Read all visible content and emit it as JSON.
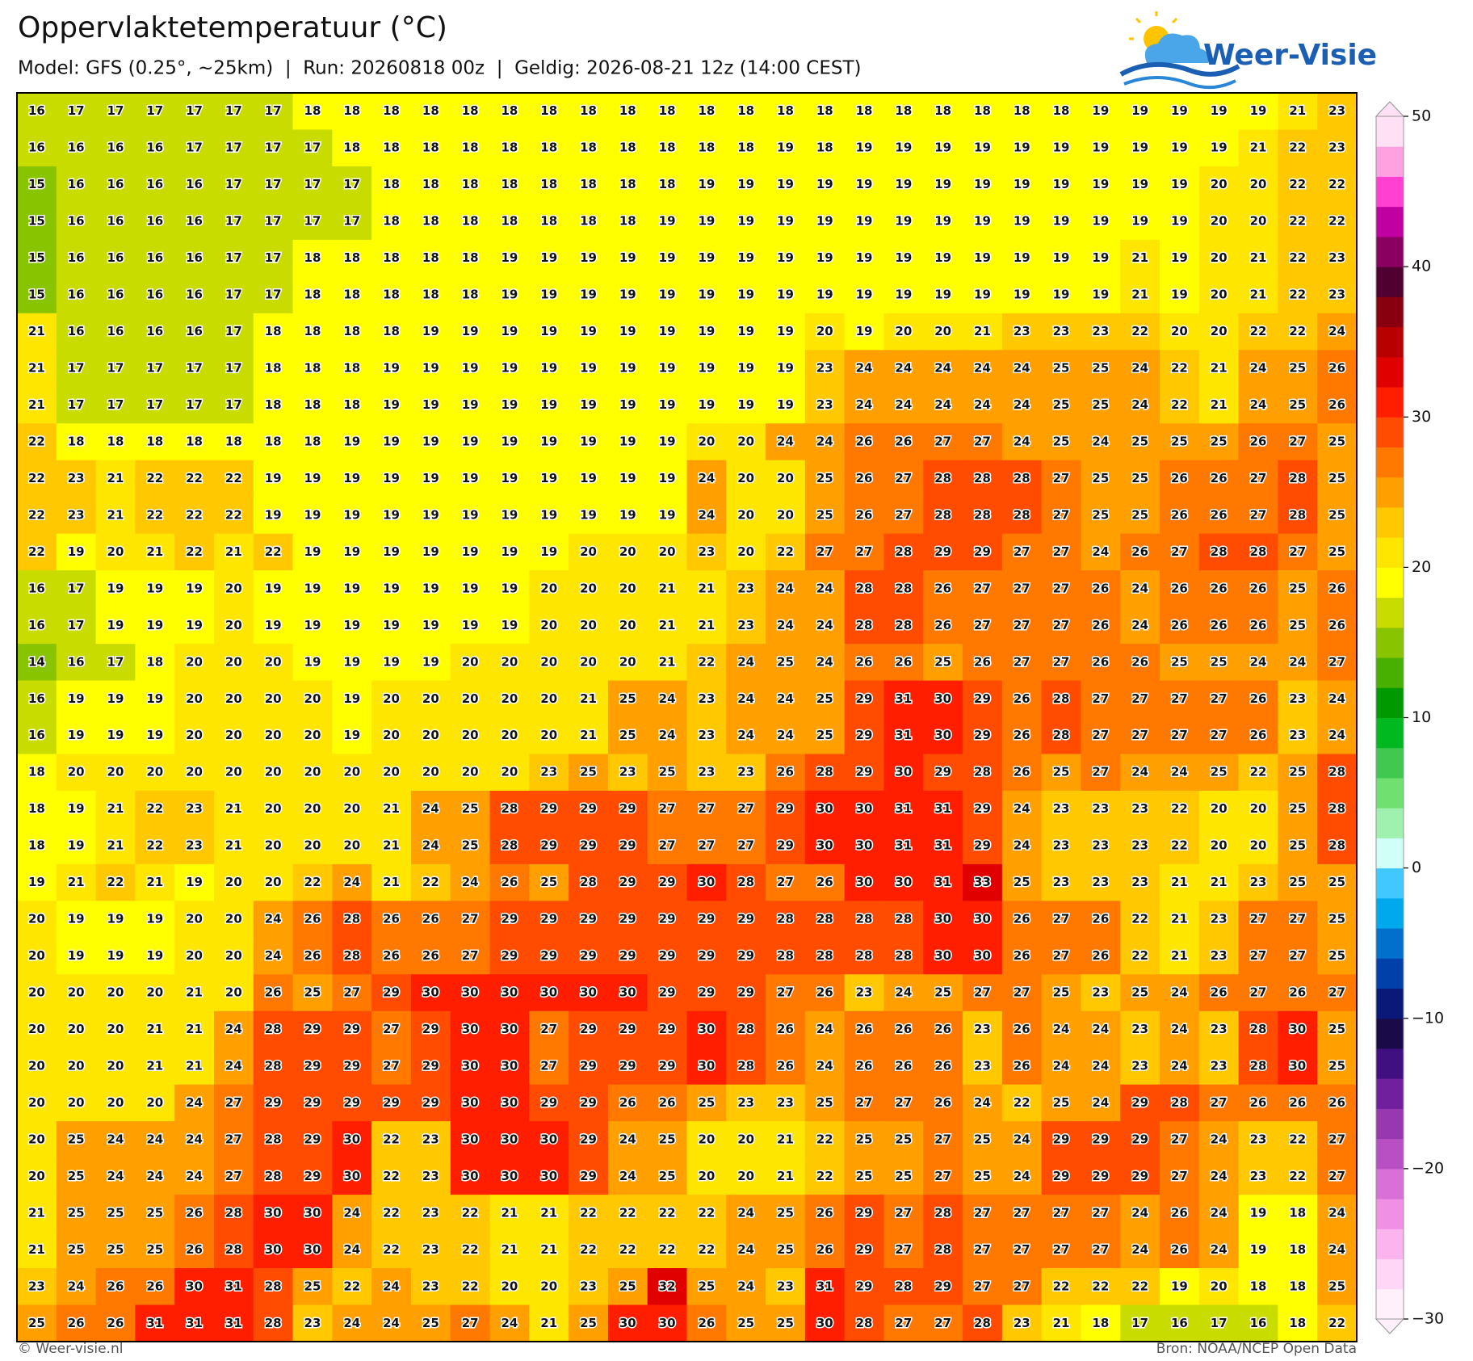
{
  "title": "Oppervlaktetemperatuur (°C)",
  "subtitle": "Model: GFS (0.25°, ~25km)  |  Run: 20260818 00z  |  Geldig: 2026-08-21 12z (14:00 CEST)",
  "logo_text": "Weer-Visie",
  "footer_left": "© Weer-visie.nl",
  "footer_right": "Bron: NOAA/NCEP Open Data",
  "map": {
    "values": [
      [
        16,
        17,
        17,
        17,
        17,
        17,
        17,
        18,
        18,
        18,
        18,
        18,
        18,
        18,
        18,
        18,
        18,
        18,
        18,
        18,
        18,
        18,
        18,
        18,
        18,
        18,
        18,
        19,
        19,
        19,
        19,
        19,
        21,
        23
      ],
      [
        16,
        16,
        16,
        16,
        17,
        17,
        17,
        17,
        18,
        18,
        18,
        18,
        18,
        18,
        18,
        18,
        18,
        18,
        18,
        19,
        18,
        19,
        19,
        19,
        19,
        19,
        19,
        19,
        19,
        19,
        19,
        21,
        22,
        23
      ],
      [
        15,
        16,
        16,
        16,
        16,
        17,
        17,
        17,
        17,
        18,
        18,
        18,
        18,
        18,
        18,
        18,
        18,
        19,
        19,
        19,
        19,
        19,
        19,
        19,
        19,
        19,
        19,
        19,
        19,
        19,
        20,
        20,
        22,
        22
      ],
      [
        15,
        16,
        16,
        16,
        16,
        17,
        17,
        17,
        17,
        18,
        18,
        18,
        18,
        18,
        18,
        18,
        19,
        19,
        19,
        19,
        19,
        19,
        19,
        19,
        19,
        19,
        19,
        19,
        19,
        19,
        20,
        20,
        22,
        22
      ],
      [
        15,
        16,
        16,
        16,
        16,
        17,
        17,
        18,
        18,
        18,
        18,
        18,
        19,
        19,
        19,
        19,
        19,
        19,
        19,
        19,
        19,
        19,
        19,
        19,
        19,
        19,
        19,
        19,
        21,
        19,
        20,
        21,
        22,
        23
      ],
      [
        15,
        16,
        16,
        16,
        16,
        17,
        17,
        18,
        18,
        18,
        18,
        18,
        19,
        19,
        19,
        19,
        19,
        19,
        19,
        19,
        19,
        19,
        19,
        19,
        19,
        19,
        19,
        19,
        21,
        19,
        20,
        21,
        22,
        23
      ],
      [
        21,
        16,
        16,
        16,
        16,
        17,
        18,
        18,
        18,
        18,
        19,
        19,
        19,
        19,
        19,
        19,
        19,
        19,
        19,
        19,
        20,
        19,
        20,
        20,
        21,
        23,
        23,
        23,
        22,
        20,
        20,
        22,
        22,
        24
      ],
      [
        21,
        17,
        17,
        17,
        17,
        17,
        18,
        18,
        18,
        19,
        19,
        19,
        19,
        19,
        19,
        19,
        19,
        19,
        19,
        19,
        23,
        24,
        24,
        24,
        24,
        24,
        25,
        25,
        24,
        22,
        21,
        24,
        25,
        26
      ],
      [
        21,
        17,
        17,
        17,
        17,
        17,
        18,
        18,
        18,
        19,
        19,
        19,
        19,
        19,
        19,
        19,
        19,
        19,
        19,
        19,
        23,
        24,
        24,
        24,
        24,
        24,
        25,
        25,
        24,
        22,
        21,
        24,
        25,
        26
      ],
      [
        22,
        18,
        18,
        18,
        18,
        18,
        18,
        18,
        19,
        19,
        19,
        19,
        19,
        19,
        19,
        19,
        19,
        20,
        20,
        24,
        24,
        26,
        26,
        27,
        27,
        24,
        25,
        24,
        25,
        25,
        25,
        26,
        27,
        25
      ],
      [
        22,
        23,
        21,
        22,
        22,
        22,
        19,
        19,
        19,
        19,
        19,
        19,
        19,
        19,
        19,
        19,
        19,
        24,
        20,
        20,
        25,
        26,
        27,
        28,
        28,
        28,
        27,
        25,
        25,
        26,
        26,
        27,
        28,
        25
      ],
      [
        22,
        23,
        21,
        22,
        22,
        22,
        19,
        19,
        19,
        19,
        19,
        19,
        19,
        19,
        19,
        19,
        19,
        24,
        20,
        20,
        25,
        26,
        27,
        28,
        28,
        28,
        27,
        25,
        25,
        26,
        26,
        27,
        28,
        25
      ],
      [
        22,
        19,
        20,
        21,
        22,
        21,
        22,
        19,
        19,
        19,
        19,
        19,
        19,
        19,
        20,
        20,
        20,
        23,
        20,
        22,
        27,
        27,
        28,
        29,
        29,
        27,
        27,
        24,
        26,
        27,
        28,
        28,
        27,
        25
      ],
      [
        16,
        17,
        19,
        19,
        19,
        20,
        19,
        19,
        19,
        19,
        19,
        19,
        19,
        20,
        20,
        20,
        21,
        21,
        23,
        24,
        24,
        28,
        28,
        26,
        27,
        27,
        27,
        26,
        24,
        26,
        26,
        26,
        25,
        26
      ],
      [
        16,
        17,
        19,
        19,
        19,
        20,
        19,
        19,
        19,
        19,
        19,
        19,
        19,
        20,
        20,
        20,
        21,
        21,
        23,
        24,
        24,
        28,
        28,
        26,
        27,
        27,
        27,
        26,
        24,
        26,
        26,
        26,
        25,
        26
      ],
      [
        14,
        16,
        17,
        18,
        20,
        20,
        20,
        19,
        19,
        19,
        19,
        20,
        20,
        20,
        20,
        20,
        21,
        22,
        24,
        25,
        24,
        26,
        26,
        25,
        26,
        27,
        27,
        26,
        26,
        25,
        25,
        24,
        24,
        27
      ],
      [
        16,
        19,
        19,
        19,
        20,
        20,
        20,
        20,
        19,
        20,
        20,
        20,
        20,
        20,
        21,
        25,
        24,
        23,
        24,
        24,
        25,
        29,
        31,
        30,
        29,
        26,
        28,
        27,
        27,
        27,
        27,
        26,
        23,
        24
      ],
      [
        16,
        19,
        19,
        19,
        20,
        20,
        20,
        20,
        19,
        20,
        20,
        20,
        20,
        20,
        21,
        25,
        24,
        23,
        24,
        24,
        25,
        29,
        31,
        30,
        29,
        26,
        28,
        27,
        27,
        27,
        27,
        26,
        23,
        24
      ],
      [
        18,
        20,
        20,
        20,
        20,
        20,
        20,
        20,
        20,
        20,
        20,
        20,
        20,
        23,
        25,
        23,
        25,
        23,
        23,
        26,
        28,
        29,
        30,
        29,
        28,
        26,
        25,
        27,
        24,
        24,
        25,
        22,
        25,
        28
      ],
      [
        18,
        19,
        21,
        22,
        23,
        21,
        20,
        20,
        20,
        21,
        24,
        25,
        28,
        29,
        29,
        29,
        27,
        27,
        27,
        29,
        30,
        30,
        31,
        31,
        29,
        24,
        23,
        23,
        23,
        22,
        20,
        20,
        25,
        28
      ],
      [
        18,
        19,
        21,
        22,
        23,
        21,
        20,
        20,
        20,
        21,
        24,
        25,
        28,
        29,
        29,
        29,
        27,
        27,
        27,
        29,
        30,
        30,
        31,
        31,
        29,
        24,
        23,
        23,
        23,
        22,
        20,
        20,
        25,
        28
      ],
      [
        19,
        21,
        22,
        21,
        19,
        20,
        20,
        22,
        24,
        21,
        22,
        24,
        26,
        25,
        28,
        29,
        29,
        30,
        28,
        27,
        26,
        30,
        30,
        31,
        33,
        25,
        23,
        23,
        23,
        21,
        21,
        23,
        25,
        25
      ],
      [
        20,
        19,
        19,
        19,
        20,
        20,
        24,
        26,
        28,
        26,
        26,
        27,
        29,
        29,
        29,
        29,
        29,
        29,
        29,
        28,
        28,
        28,
        28,
        30,
        30,
        26,
        27,
        26,
        22,
        21,
        23,
        27,
        27,
        25
      ],
      [
        20,
        19,
        19,
        19,
        20,
        20,
        24,
        26,
        28,
        26,
        26,
        27,
        29,
        29,
        29,
        29,
        29,
        29,
        29,
        28,
        28,
        28,
        28,
        30,
        30,
        26,
        27,
        26,
        22,
        21,
        23,
        27,
        27,
        25
      ],
      [
        20,
        20,
        20,
        20,
        21,
        20,
        26,
        25,
        27,
        29,
        30,
        30,
        30,
        30,
        30,
        30,
        29,
        29,
        29,
        27,
        26,
        23,
        24,
        25,
        27,
        27,
        25,
        23,
        25,
        24,
        26,
        27,
        26,
        27
      ],
      [
        20,
        20,
        20,
        21,
        21,
        24,
        28,
        29,
        29,
        27,
        29,
        30,
        30,
        27,
        29,
        29,
        29,
        30,
        28,
        26,
        24,
        26,
        26,
        26,
        23,
        26,
        24,
        24,
        23,
        24,
        23,
        28,
        30,
        25
      ],
      [
        20,
        20,
        20,
        21,
        21,
        24,
        28,
        29,
        29,
        27,
        29,
        30,
        30,
        27,
        29,
        29,
        29,
        30,
        28,
        26,
        24,
        26,
        26,
        26,
        23,
        26,
        24,
        24,
        23,
        24,
        23,
        28,
        30,
        25
      ],
      [
        20,
        20,
        20,
        20,
        24,
        27,
        29,
        29,
        29,
        29,
        29,
        30,
        30,
        29,
        29,
        26,
        26,
        25,
        23,
        23,
        25,
        27,
        27,
        26,
        24,
        22,
        25,
        24,
        29,
        28,
        27,
        26,
        26,
        26
      ],
      [
        20,
        25,
        24,
        24,
        24,
        27,
        28,
        29,
        30,
        22,
        23,
        30,
        30,
        30,
        29,
        24,
        25,
        20,
        20,
        21,
        22,
        25,
        25,
        27,
        25,
        24,
        29,
        29,
        29,
        27,
        24,
        23,
        22,
        27
      ],
      [
        20,
        25,
        24,
        24,
        24,
        27,
        28,
        29,
        30,
        22,
        23,
        30,
        30,
        30,
        29,
        24,
        25,
        20,
        20,
        21,
        22,
        25,
        25,
        27,
        25,
        24,
        29,
        29,
        29,
        27,
        24,
        23,
        22,
        27
      ],
      [
        21,
        25,
        25,
        25,
        26,
        28,
        30,
        30,
        24,
        22,
        23,
        22,
        21,
        21,
        22,
        22,
        22,
        22,
        24,
        25,
        26,
        29,
        27,
        28,
        27,
        27,
        27,
        27,
        24,
        26,
        24,
        19,
        18,
        24
      ],
      [
        21,
        25,
        25,
        25,
        26,
        28,
        30,
        30,
        24,
        22,
        23,
        22,
        21,
        21,
        22,
        22,
        22,
        22,
        24,
        25,
        26,
        29,
        27,
        28,
        27,
        27,
        27,
        27,
        24,
        26,
        24,
        19,
        18,
        24
      ],
      [
        23,
        24,
        26,
        26,
        30,
        31,
        28,
        25,
        22,
        24,
        23,
        22,
        20,
        20,
        23,
        25,
        32,
        25,
        24,
        23,
        31,
        29,
        28,
        29,
        27,
        27,
        22,
        22,
        22,
        19,
        20,
        18,
        18,
        25
      ],
      [
        25,
        26,
        26,
        31,
        31,
        31,
        28,
        23,
        24,
        24,
        25,
        27,
        24,
        21,
        25,
        30,
        30,
        26,
        25,
        25,
        30,
        28,
        27,
        27,
        28,
        23,
        21,
        18,
        17,
        16,
        17,
        16,
        18,
        22
      ]
    ],
    "colorbar": {
      "lim": [
        -30,
        50
      ],
      "ticks": [
        50,
        40,
        30,
        20,
        10,
        0,
        {
          "value": -10,
          "label": "−10"
        },
        {
          "value": -20,
          "label": "−20"
        },
        {
          "value": -30,
          "label": "−30"
        }
      ],
      "colors": [
        "#fff0fc",
        "#ffd6f6",
        "#fcb4ee",
        "#f090e4",
        "#d870d8",
        "#b850c4",
        "#9838b0",
        "#70209c",
        "#401080",
        "#1a0a48",
        "#0a1878",
        "#0040a8",
        "#0070cc",
        "#00a8ec",
        "#40c8ff",
        "#d0fff8",
        "#a0f0b0",
        "#70e070",
        "#40c850",
        "#00b820",
        "#009a00",
        "#48b000",
        "#88c400",
        "#c8dc00",
        "#ffff00",
        "#ffe600",
        "#ffc800",
        "#ffa000",
        "#ff7800",
        "#ff4c00",
        "#ff1e00",
        "#e00000",
        "#b80000",
        "#880010",
        "#500030",
        "#8a0060",
        "#c000a0",
        "#ff40d0",
        "#ffa0e0",
        "#ffe0f4"
      ]
    }
  }
}
